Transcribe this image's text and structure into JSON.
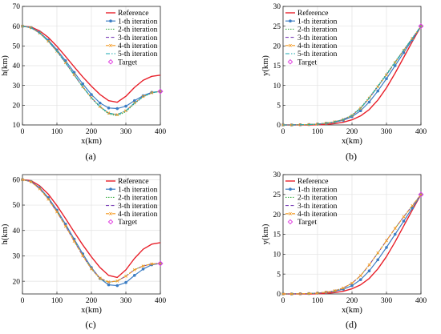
{
  "colors": {
    "reference": "#e8202a",
    "iter1": "#3c7dc4",
    "iter2": "#3fb04a",
    "iter3": "#7a3fb8",
    "iter4": "#f5991e",
    "iter5": "#1aa7b0",
    "target": "#e040e0"
  },
  "chart_data": [
    {
      "panel": "(a)",
      "type": "line",
      "xlabel": "x(km)",
      "ylabel": "h(km)",
      "xlim": [
        0,
        400
      ],
      "ylim": [
        10,
        70
      ],
      "xticks": [
        0,
        100,
        200,
        300,
        400
      ],
      "yticks": [
        10,
        20,
        30,
        40,
        50,
        60,
        70
      ],
      "grid": true,
      "legend_position": "top-right",
      "x": [
        0,
        25,
        50,
        75,
        100,
        125,
        150,
        175,
        200,
        225,
        250,
        275,
        300,
        325,
        350,
        375,
        400
      ],
      "series": [
        {
          "name": "Reference",
          "style": "solid",
          "color_key": "reference",
          "values": [
            60,
            59.6,
            57.6,
            54.3,
            49.8,
            44.7,
            39.4,
            34.3,
            29.6,
            25.4,
            22.3,
            21.5,
            24.5,
            29,
            32.6,
            34.6,
            35.2
          ]
        },
        {
          "name": "1-th iteration",
          "style": "solid-dot",
          "color_key": "iter1",
          "values": [
            60,
            59.3,
            56.8,
            52.9,
            48,
            42.5,
            36.6,
            30.8,
            25.4,
            21.1,
            18.6,
            18.3,
            19.5,
            22.3,
            24.8,
            26.5,
            27
          ]
        },
        {
          "name": "2-th iteration",
          "style": "dotted",
          "color_key": "iter2",
          "values": [
            60,
            59.2,
            56.5,
            52.3,
            47.2,
            41.4,
            35.2,
            29.1,
            23.6,
            19,
            15.6,
            14.6,
            16.7,
            20.8,
            24.2,
            26.2,
            27
          ]
        },
        {
          "name": "3-th iteration",
          "style": "dashed",
          "color_key": "iter3",
          "values": [
            60,
            59.2,
            56.5,
            52.4,
            47.3,
            41.5,
            35.4,
            29.3,
            23.8,
            19.3,
            16,
            15.2,
            17.2,
            21.1,
            24.4,
            26.3,
            27
          ]
        },
        {
          "name": "4-th iteration",
          "style": "dash-dot-marker",
          "color_key": "iter4",
          "values": [
            60,
            59.2,
            56.5,
            52.4,
            47.3,
            41.5,
            35.4,
            29.3,
            23.8,
            19.3,
            16,
            15.2,
            17.2,
            21.1,
            24.4,
            26.3,
            27
          ]
        },
        {
          "name": "5-th iteration",
          "style": "dash-dot",
          "color_key": "iter5",
          "values": [
            60,
            59.2,
            56.5,
            52.4,
            47.3,
            41.5,
            35.4,
            29.3,
            23.8,
            19.3,
            16,
            15.2,
            17.2,
            21.1,
            24.4,
            26.3,
            27
          ]
        }
      ],
      "target": {
        "name": "Target",
        "x": 400,
        "y": 27
      }
    },
    {
      "panel": "(b)",
      "type": "line",
      "xlabel": "x(km)",
      "ylabel": "y(km)",
      "xlim": [
        0,
        400
      ],
      "ylim": [
        0,
        30
      ],
      "xticks": [
        0,
        100,
        200,
        300,
        400
      ],
      "yticks": [
        0,
        5,
        10,
        15,
        20,
        25,
        30
      ],
      "grid": true,
      "legend_position": "top-left",
      "x": [
        0,
        25,
        50,
        75,
        100,
        125,
        150,
        175,
        200,
        225,
        250,
        275,
        300,
        325,
        350,
        375,
        400
      ],
      "series": [
        {
          "name": "Reference",
          "style": "solid",
          "color_key": "reference",
          "values": [
            0,
            0,
            0,
            0,
            0.05,
            0.15,
            0.35,
            0.7,
            1.3,
            2.3,
            3.9,
            6.3,
            9.4,
            13.1,
            17.1,
            21.1,
            25
          ]
        },
        {
          "name": "1-th iteration",
          "style": "solid-dot",
          "color_key": "iter1",
          "values": [
            0,
            0,
            0.05,
            0.1,
            0.2,
            0.4,
            0.7,
            1.2,
            2.1,
            3.6,
            5.8,
            8.6,
            11.7,
            15,
            18.3,
            21.6,
            25
          ]
        },
        {
          "name": "2-th iteration",
          "style": "dotted",
          "color_key": "iter2",
          "values": [
            0,
            0,
            0.05,
            0.1,
            0.2,
            0.45,
            0.8,
            1.4,
            2.5,
            4.4,
            7,
            9.9,
            12.9,
            16,
            19,
            22,
            25
          ]
        },
        {
          "name": "3-th iteration",
          "style": "dashed",
          "color_key": "iter3",
          "values": [
            0,
            0,
            0.05,
            0.1,
            0.2,
            0.45,
            0.8,
            1.4,
            2.4,
            4.2,
            6.8,
            9.7,
            12.7,
            15.8,
            18.9,
            21.9,
            25
          ]
        },
        {
          "name": "4-th iteration",
          "style": "dash-dot-marker",
          "color_key": "iter4",
          "values": [
            0,
            0,
            0.05,
            0.1,
            0.2,
            0.45,
            0.8,
            1.4,
            2.4,
            4.2,
            6.8,
            9.7,
            12.7,
            15.8,
            18.9,
            21.9,
            25
          ]
        },
        {
          "name": "5-th iteration",
          "style": "dash-dot",
          "color_key": "iter5",
          "values": [
            0,
            0,
            0.05,
            0.1,
            0.2,
            0.45,
            0.8,
            1.4,
            2.4,
            4.2,
            6.8,
            9.7,
            12.7,
            15.8,
            18.9,
            21.9,
            25
          ]
        }
      ],
      "target": {
        "name": "Target",
        "x": 400,
        "y": 25
      }
    },
    {
      "panel": "(c)",
      "type": "line",
      "xlabel": "x(km)",
      "ylabel": "h(km)",
      "xlim": [
        0,
        400
      ],
      "ylim": [
        15,
        62
      ],
      "xticks": [
        0,
        100,
        200,
        300,
        400
      ],
      "yticks": [
        20,
        30,
        40,
        50,
        60
      ],
      "grid": true,
      "legend_position": "top-right",
      "x": [
        0,
        25,
        50,
        75,
        100,
        125,
        150,
        175,
        200,
        225,
        250,
        275,
        300,
        325,
        350,
        375,
        400
      ],
      "series": [
        {
          "name": "Reference",
          "style": "solid",
          "color_key": "reference",
          "values": [
            60,
            59.6,
            57.6,
            54.3,
            49.8,
            44.7,
            39.4,
            34.3,
            29.6,
            25.4,
            22.3,
            21.5,
            24.5,
            29,
            32.6,
            34.6,
            35.2
          ]
        },
        {
          "name": "1-th iteration",
          "style": "solid-dot",
          "color_key": "iter1",
          "values": [
            60,
            59.3,
            56.8,
            52.9,
            48,
            42.5,
            36.6,
            30.8,
            25.4,
            21.1,
            18.6,
            18.3,
            19.5,
            22.3,
            24.8,
            26.5,
            27
          ]
        },
        {
          "name": "2-th iteration",
          "style": "dotted",
          "color_key": "iter2",
          "values": [
            60,
            59.2,
            56.5,
            52.4,
            47.4,
            41.8,
            35.9,
            30.1,
            24.8,
            20.9,
            19.6,
            20.1,
            22.1,
            24.6,
            26.1,
            26.8,
            27
          ]
        },
        {
          "name": "3-th iteration",
          "style": "dashed",
          "color_key": "iter3",
          "values": [
            60,
            59.2,
            56.4,
            52.3,
            47.3,
            41.7,
            35.8,
            30,
            24.9,
            21.2,
            19.7,
            20.1,
            22,
            24.5,
            26,
            26.8,
            27
          ]
        },
        {
          "name": "4-th iteration",
          "style": "dash-dot-marker",
          "color_key": "iter4",
          "values": [
            60,
            59.2,
            56.4,
            52.3,
            47.3,
            41.7,
            35.8,
            30,
            24.9,
            21.2,
            19.7,
            20.1,
            22,
            24.5,
            26,
            26.8,
            27
          ]
        }
      ],
      "target": {
        "name": "Target",
        "x": 400,
        "y": 27
      }
    },
    {
      "panel": "(d)",
      "type": "line",
      "xlabel": "x(km)",
      "ylabel": "y(km)",
      "xlim": [
        0,
        400
      ],
      "ylim": [
        0,
        30
      ],
      "xticks": [
        0,
        100,
        200,
        300,
        400
      ],
      "yticks": [
        0,
        5,
        10,
        15,
        20,
        25,
        30
      ],
      "grid": true,
      "legend_position": "top-left",
      "x": [
        0,
        25,
        50,
        75,
        100,
        125,
        150,
        175,
        200,
        225,
        250,
        275,
        300,
        325,
        350,
        375,
        400
      ],
      "series": [
        {
          "name": "Reference",
          "style": "solid",
          "color_key": "reference",
          "values": [
            0,
            0,
            0,
            0,
            0.05,
            0.15,
            0.35,
            0.7,
            1.3,
            2.3,
            3.9,
            6.3,
            9.4,
            13.1,
            17.1,
            21.1,
            25
          ]
        },
        {
          "name": "1-th iteration",
          "style": "solid-dot",
          "color_key": "iter1",
          "values": [
            0,
            0,
            0.05,
            0.1,
            0.2,
            0.4,
            0.7,
            1.2,
            2.1,
            3.6,
            5.8,
            8.6,
            11.7,
            15,
            18.3,
            21.6,
            25
          ]
        },
        {
          "name": "2-th iteration",
          "style": "dotted",
          "color_key": "iter2",
          "values": [
            0,
            0,
            0.05,
            0.1,
            0.2,
            0.45,
            0.8,
            1.5,
            2.7,
            4.6,
            7.3,
            10.3,
            13.4,
            16.5,
            19.4,
            22.2,
            25
          ]
        },
        {
          "name": "3-th iteration",
          "style": "dashed",
          "color_key": "iter3",
          "values": [
            0,
            0,
            0.05,
            0.1,
            0.2,
            0.45,
            0.8,
            1.5,
            2.7,
            4.6,
            7.3,
            10.3,
            13.4,
            16.5,
            19.4,
            22.2,
            25
          ]
        },
        {
          "name": "4-th iteration",
          "style": "dash-dot-marker",
          "color_key": "iter4",
          "values": [
            0,
            0,
            0.05,
            0.1,
            0.2,
            0.45,
            0.8,
            1.5,
            2.7,
            4.6,
            7.3,
            10.3,
            13.4,
            16.5,
            19.4,
            22.2,
            25
          ]
        }
      ],
      "target": {
        "name": "Target",
        "x": 400,
        "y": 25
      }
    }
  ]
}
